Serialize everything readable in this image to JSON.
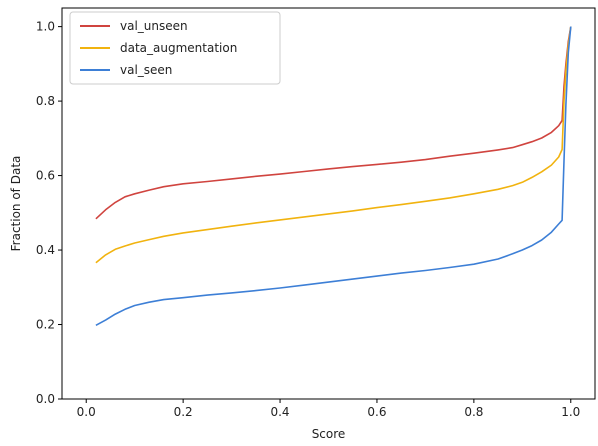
{
  "chart_data": {
    "type": "line",
    "title": "",
    "xlabel": "Score",
    "ylabel": "Fraction of Data",
    "xlim": [
      -0.05,
      1.05
    ],
    "ylim": [
      0.0,
      1.05
    ],
    "xticks": [
      "0.0",
      "0.2",
      "0.4",
      "0.6",
      "0.8",
      "1.0"
    ],
    "yticks": [
      "0.0",
      "0.2",
      "0.4",
      "0.6",
      "0.8",
      "1.0"
    ],
    "grid": false,
    "legend_position": "top-left",
    "series": [
      {
        "name": "val_unseen",
        "color": "#d0443f",
        "x": [
          0.02,
          0.04,
          0.06,
          0.08,
          0.1,
          0.13,
          0.16,
          0.2,
          0.25,
          0.3,
          0.35,
          0.4,
          0.45,
          0.5,
          0.55,
          0.6,
          0.65,
          0.7,
          0.75,
          0.8,
          0.85,
          0.88,
          0.9,
          0.92,
          0.94,
          0.96,
          0.975,
          0.982,
          0.986,
          0.99,
          0.995,
          1.0
        ],
        "y": [
          0.484,
          0.508,
          0.528,
          0.543,
          0.551,
          0.561,
          0.57,
          0.578,
          0.584,
          0.591,
          0.598,
          0.604,
          0.611,
          0.618,
          0.624,
          0.63,
          0.636,
          0.643,
          0.652,
          0.66,
          0.669,
          0.675,
          0.683,
          0.691,
          0.701,
          0.716,
          0.734,
          0.748,
          0.84,
          0.9,
          0.96,
          1.0
        ]
      },
      {
        "name": "data_augmentation",
        "color": "#f1b30f",
        "x": [
          0.02,
          0.04,
          0.06,
          0.08,
          0.1,
          0.13,
          0.16,
          0.2,
          0.25,
          0.3,
          0.35,
          0.4,
          0.45,
          0.5,
          0.55,
          0.6,
          0.65,
          0.7,
          0.75,
          0.8,
          0.85,
          0.88,
          0.9,
          0.92,
          0.94,
          0.96,
          0.975,
          0.982,
          0.986,
          0.99,
          0.995,
          1.0
        ],
        "y": [
          0.366,
          0.387,
          0.402,
          0.411,
          0.419,
          0.428,
          0.437,
          0.446,
          0.455,
          0.464,
          0.473,
          0.481,
          0.489,
          0.497,
          0.505,
          0.514,
          0.522,
          0.531,
          0.54,
          0.551,
          0.563,
          0.573,
          0.582,
          0.595,
          0.61,
          0.628,
          0.65,
          0.67,
          0.8,
          0.88,
          0.95,
          1.0
        ]
      },
      {
        "name": "val_seen",
        "color": "#3d7fd6",
        "x": [
          0.02,
          0.04,
          0.06,
          0.08,
          0.1,
          0.13,
          0.16,
          0.2,
          0.25,
          0.3,
          0.35,
          0.4,
          0.45,
          0.5,
          0.55,
          0.6,
          0.65,
          0.7,
          0.75,
          0.8,
          0.85,
          0.88,
          0.9,
          0.92,
          0.94,
          0.96,
          0.975,
          0.982,
          0.986,
          0.99,
          0.995,
          1.0
        ],
        "y": [
          0.198,
          0.212,
          0.228,
          0.241,
          0.251,
          0.26,
          0.267,
          0.272,
          0.279,
          0.285,
          0.291,
          0.298,
          0.306,
          0.314,
          0.322,
          0.33,
          0.338,
          0.345,
          0.353,
          0.362,
          0.376,
          0.39,
          0.4,
          0.412,
          0.427,
          0.448,
          0.47,
          0.48,
          0.64,
          0.79,
          0.93,
          1.0
        ]
      }
    ]
  }
}
